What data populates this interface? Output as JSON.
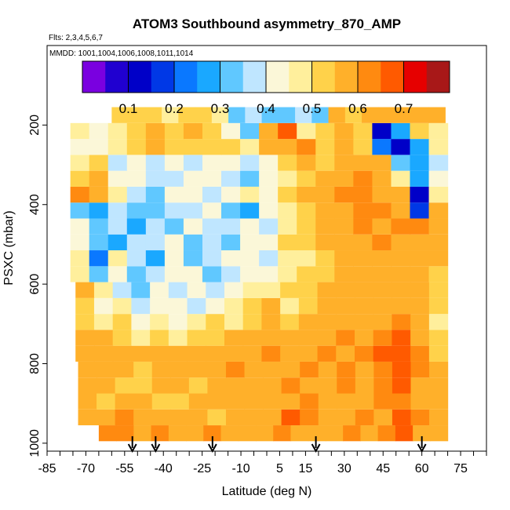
{
  "chart_data": {
    "type": "heatmap",
    "title": "ATOM3 Southbound asymmetry_870_AMP",
    "flights_label": "Flts: 2,3,4,5,6,7",
    "mmdd_label": "MMDD: 1001,1004,1006,1008,1011,1014",
    "xlabel": "Latitude (deg N)",
    "ylabel": "PSXC (mbar)",
    "xlim": [
      -85,
      85
    ],
    "ylim": [
      1020,
      0
    ],
    "x_ticks": [
      "-85",
      "-70",
      "-55",
      "-40",
      "-25",
      "-10",
      "5",
      "15",
      "30",
      "45",
      "60",
      "75"
    ],
    "x_tick_values": [
      -85,
      -70,
      -55,
      -40,
      -25,
      -10,
      5,
      15,
      30,
      45,
      60,
      75
    ],
    "y_ticks": [
      "200",
      "400",
      "600",
      "800",
      "1000"
    ],
    "y_tick_values": [
      200,
      400,
      600,
      800,
      1000
    ],
    "colorbar": {
      "ticks": [
        "0.1",
        "0.2",
        "0.3",
        "0.4",
        "0.5",
        "0.6",
        "0.7"
      ],
      "tick_values": [
        0.1,
        0.2,
        0.3,
        0.4,
        0.5,
        0.6,
        0.7
      ],
      "range": [
        0.0,
        0.8
      ],
      "colors": [
        "#7a00e0",
        "#2000d0",
        "#0000c8",
        "#0038e6",
        "#0a78ff",
        "#1aa8ff",
        "#60c8ff",
        "#bfe6ff",
        "#fbf7d8",
        "#ffef9c",
        "#ffd24a",
        "#ffb02a",
        "#ff8a10",
        "#ff5a00",
        "#e60000",
        "#a81818"
      ]
    },
    "profile_markers_lat": [
      -52,
      -43,
      -21,
      19,
      60
    ],
    "layers": [
      {
        "p": 975,
        "x0": -65,
        "x1": 70,
        "values": [
          0.62,
          0.62,
          0.6,
          0.63,
          0.6,
          0.58,
          0.62,
          0.6,
          0.57,
          0.6,
          0.62,
          0.6,
          0.58,
          0.6,
          0.63,
          0.6,
          0.61,
          0.65,
          0.6,
          0.58
        ]
      },
      {
        "p": 935,
        "x0": -73,
        "x1": 70,
        "values": [
          0.6,
          0.58,
          0.62,
          0.56,
          0.6,
          0.57,
          0.55,
          0.52,
          0.6,
          0.58,
          0.6,
          0.65,
          0.62,
          0.58,
          0.6,
          0.62,
          0.6,
          0.66,
          0.62,
          0.6
        ]
      },
      {
        "p": 895,
        "x0": -73,
        "x1": 70,
        "values": [
          0.57,
          0.52,
          0.55,
          0.58,
          0.5,
          0.53,
          0.56,
          0.6,
          0.58,
          0.55,
          0.58,
          0.6,
          0.62,
          0.6,
          0.58,
          0.6,
          0.62,
          0.64,
          0.6,
          0.57
        ]
      },
      {
        "p": 855,
        "x0": -73,
        "x1": 70,
        "values": [
          0.58,
          0.55,
          0.52,
          0.5,
          0.55,
          0.58,
          0.53,
          0.57,
          0.6,
          0.58,
          0.6,
          0.62,
          0.58,
          0.6,
          0.62,
          0.6,
          0.63,
          0.65,
          0.6,
          0.55
        ]
      },
      {
        "p": 815,
        "x0": -73,
        "x1": 70,
        "values": [
          0.6,
          0.57,
          0.55,
          0.52,
          0.58,
          0.6,
          0.57,
          0.6,
          0.62,
          0.6,
          0.58,
          0.6,
          0.62,
          0.6,
          0.63,
          0.6,
          0.64,
          0.66,
          0.62,
          0.56
        ]
      },
      {
        "p": 775,
        "x0": -74,
        "x1": 70,
        "values": [
          0.58,
          0.6,
          0.55,
          0.58,
          0.6,
          0.57,
          0.6,
          0.55,
          0.58,
          0.6,
          0.62,
          0.58,
          0.6,
          0.62,
          0.6,
          0.62,
          0.65,
          0.68,
          0.62,
          0.52
        ]
      },
      {
        "p": 735,
        "x0": -74,
        "x1": 70,
        "values": [
          0.55,
          0.6,
          0.52,
          0.48,
          0.5,
          0.45,
          0.52,
          0.5,
          0.55,
          0.58,
          0.56,
          0.6,
          0.58,
          0.6,
          0.62,
          0.6,
          0.62,
          0.65,
          0.6,
          0.5
        ]
      },
      {
        "p": 695,
        "x0": -74,
        "x1": 70,
        "values": [
          0.5,
          0.45,
          0.52,
          0.42,
          0.48,
          0.4,
          0.45,
          0.5,
          0.48,
          0.52,
          0.55,
          0.5,
          0.56,
          0.58,
          0.6,
          0.58,
          0.6,
          0.62,
          0.58,
          0.48
        ]
      },
      {
        "p": 655,
        "x0": -74,
        "x1": 70,
        "values": [
          0.52,
          0.42,
          0.45,
          0.38,
          0.4,
          0.42,
          0.36,
          0.4,
          0.45,
          0.5,
          0.55,
          0.48,
          0.52,
          0.55,
          0.6,
          0.58,
          0.6,
          0.58,
          0.56,
          0.5
        ]
      },
      {
        "p": 615,
        "x0": -74,
        "x1": 70,
        "values": [
          0.55,
          0.45,
          0.38,
          0.35,
          0.4,
          0.38,
          0.42,
          0.36,
          0.4,
          0.45,
          0.48,
          0.5,
          0.52,
          0.55,
          0.58,
          0.6,
          0.6,
          0.58,
          0.55,
          0.5
        ]
      },
      {
        "p": 575,
        "x0": -76,
        "x1": 70,
        "values": [
          0.45,
          0.35,
          0.4,
          0.32,
          0.38,
          0.4,
          0.42,
          0.35,
          0.38,
          0.42,
          0.4,
          0.45,
          0.5,
          0.52,
          0.55,
          0.58,
          0.6,
          0.6,
          0.58,
          0.5
        ]
      },
      {
        "p": 535,
        "x0": -76,
        "x1": 70,
        "values": [
          0.48,
          0.2,
          0.45,
          0.36,
          0.3,
          0.4,
          0.35,
          0.38,
          0.4,
          0.42,
          0.38,
          0.45,
          0.48,
          0.5,
          0.55,
          0.58,
          0.6,
          0.6,
          0.6,
          0.55
        ]
      },
      {
        "p": 495,
        "x0": -76,
        "x1": 70,
        "values": [
          0.42,
          0.35,
          0.3,
          0.38,
          0.36,
          0.4,
          0.33,
          0.38,
          0.35,
          0.4,
          0.42,
          0.5,
          0.52,
          0.55,
          0.58,
          0.6,
          0.62,
          0.6,
          0.6,
          0.58
        ]
      },
      {
        "p": 455,
        "x0": -76,
        "x1": 70,
        "values": [
          0.4,
          0.32,
          0.36,
          0.3,
          0.38,
          0.35,
          0.4,
          0.36,
          0.38,
          0.42,
          0.38,
          0.45,
          0.5,
          0.55,
          0.6,
          0.62,
          0.6,
          0.62,
          0.62,
          0.58
        ]
      },
      {
        "p": 415,
        "x0": -76,
        "x1": 70,
        "values": [
          0.35,
          0.3,
          0.38,
          0.35,
          0.32,
          0.38,
          0.36,
          0.4,
          0.35,
          0.3,
          0.4,
          0.45,
          0.52,
          0.55,
          0.6,
          0.62,
          0.62,
          0.6,
          0.18,
          0.58
        ]
      },
      {
        "p": 375,
        "x0": -76,
        "x1": 70,
        "values": [
          0.62,
          0.55,
          0.45,
          0.38,
          0.35,
          0.4,
          0.42,
          0.36,
          0.4,
          0.45,
          0.42,
          0.5,
          0.55,
          0.6,
          0.62,
          0.63,
          0.6,
          0.58,
          0.15,
          0.45
        ]
      },
      {
        "p": 335,
        "x0": -76,
        "x1": 70,
        "values": [
          0.5,
          0.58,
          0.42,
          0.4,
          0.36,
          0.38,
          0.42,
          0.4,
          0.38,
          0.35,
          0.4,
          0.45,
          0.5,
          0.55,
          0.58,
          0.62,
          0.6,
          0.45,
          0.25,
          0.4
        ]
      },
      {
        "p": 295,
        "x0": -76,
        "x1": 70,
        "values": [
          0.45,
          0.5,
          0.38,
          0.42,
          0.36,
          0.4,
          0.38,
          0.42,
          0.4,
          0.36,
          0.42,
          0.5,
          0.55,
          0.52,
          0.58,
          0.6,
          0.55,
          0.35,
          0.3,
          0.38
        ]
      },
      {
        "p": 255,
        "x0": -76,
        "x1": 70,
        "values": [
          0.42,
          0.4,
          0.48,
          0.52,
          0.55,
          0.5,
          0.54,
          0.52,
          0.5,
          0.48,
          0.55,
          0.6,
          0.62,
          0.52,
          0.55,
          0.5,
          0.2,
          0.1,
          0.25,
          0.45
        ]
      },
      {
        "p": 215,
        "x0": -76,
        "x1": 70,
        "values": [
          0.48,
          0.42,
          0.45,
          0.5,
          0.58,
          0.52,
          0.55,
          0.5,
          0.4,
          0.35,
          0.6,
          0.7,
          0.45,
          0.52,
          0.55,
          0.52,
          0.15,
          0.3,
          0.5,
          0.48
        ]
      },
      {
        "p": 175,
        "x0": -60,
        "x1": 69,
        "values": [
          0.5,
          0.52,
          0.5,
          0.48,
          0.52,
          0.5,
          0.48,
          0.35,
          0.36,
          0.35,
          0.34,
          0.36,
          0.35,
          0.55,
          0.53,
          0.55,
          0.56,
          0.55,
          0.58,
          0.56
        ]
      }
    ]
  }
}
